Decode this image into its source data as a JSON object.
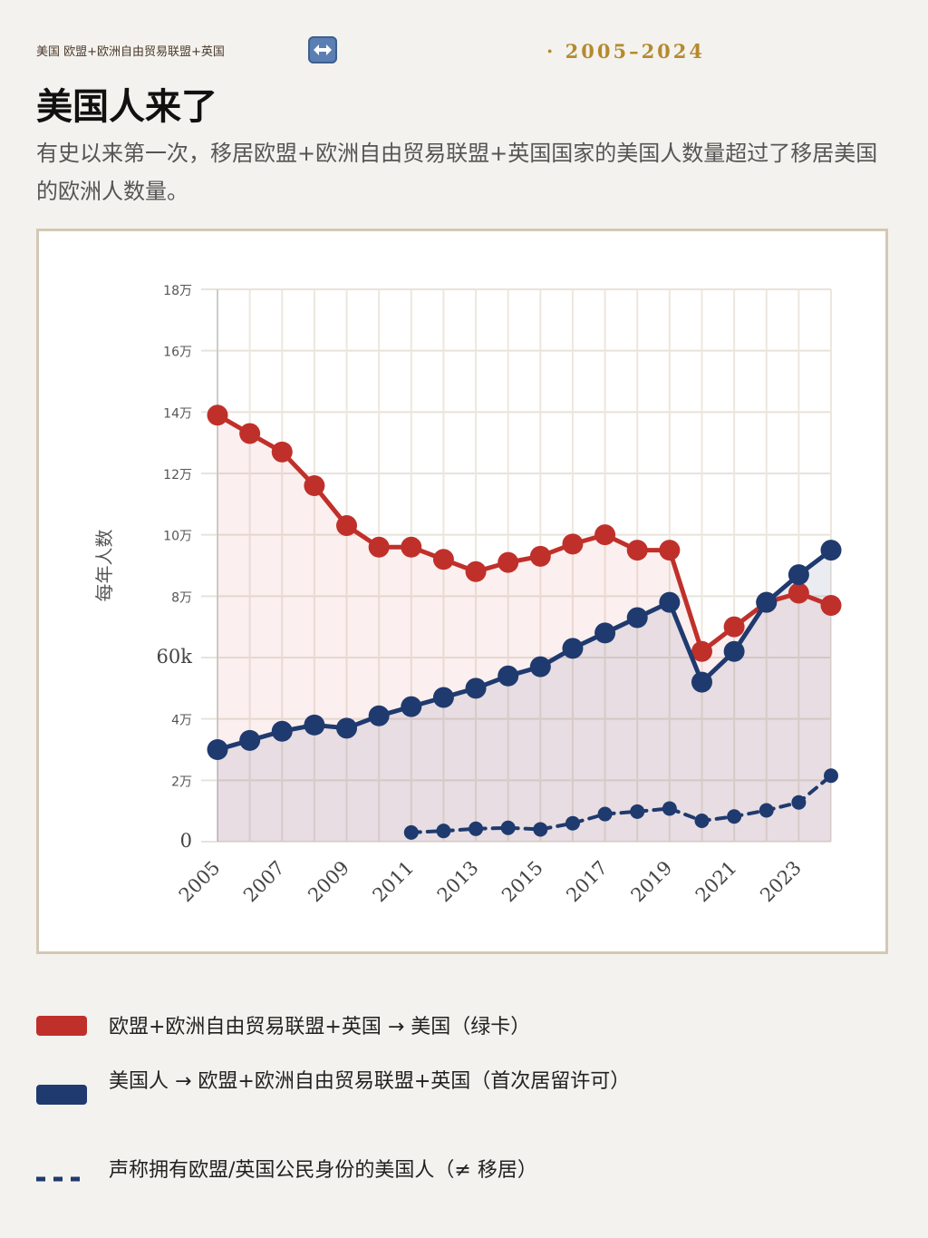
{
  "header": {
    "top_label": "美国 欧盟+欧洲自由贸易联盟+英国",
    "years": "· 2005–2024",
    "title": "美国人来了",
    "subtitle": "有史以来第一次，移居欧盟+欧洲自由贸易联盟+英国国家的美国人数量超过了移居美国的欧洲人数量。",
    "swap_icon": "left-right-arrows-icon"
  },
  "chart_data": {
    "type": "line",
    "ylabel": "每年人数",
    "xlabel": "",
    "ylim": [
      0,
      180000
    ],
    "y_ticks": [
      0,
      20000,
      40000,
      60000,
      80000,
      100000,
      120000,
      140000,
      160000,
      180000
    ],
    "y_tick_labels": [
      "0",
      "2万",
      "4万",
      "60k",
      "8万",
      "10万",
      "12万",
      "14万",
      "16万",
      "18万"
    ],
    "x": [
      2005,
      2006,
      2007,
      2008,
      2009,
      2010,
      2011,
      2012,
      2013,
      2014,
      2015,
      2016,
      2017,
      2018,
      2019,
      2020,
      2021,
      2022,
      2023,
      2024
    ],
    "x_tick_labels": [
      "2005",
      "2007",
      "2009",
      "2011",
      "2013",
      "2015",
      "2017",
      "2019",
      "2021",
      "2023"
    ],
    "grid": true,
    "legend_position": "bottom",
    "series": [
      {
        "name": "欧盟+欧洲自由贸易联盟+英国 → 美国（绿卡）",
        "color": "#c0302a",
        "style": "solid",
        "values": [
          139000,
          133000,
          127000,
          116000,
          103000,
          96000,
          96000,
          92000,
          88000,
          91000,
          93000,
          97000,
          100000,
          95000,
          95000,
          62000,
          70000,
          78000,
          81000,
          77000
        ]
      },
      {
        "name": "美国人 → 欧盟+欧洲自由贸易联盟+英国（首次居留许可）",
        "color": "#1f3a6e",
        "style": "solid",
        "values": [
          30000,
          33000,
          36000,
          38000,
          37000,
          41000,
          44000,
          47000,
          50000,
          54000,
          57000,
          63000,
          68000,
          73000,
          78000,
          52000,
          62000,
          78000,
          87000,
          95000
        ]
      },
      {
        "name": "声称拥有欧盟/英国公民身份的美国人（≠ 移居）",
        "color": "#1f3a6e",
        "style": "dashed",
        "values": [
          null,
          null,
          null,
          null,
          null,
          null,
          3000,
          3500,
          4200,
          4500,
          4000,
          6000,
          9000,
          9800,
          10800,
          6800,
          8200,
          10200,
          12800,
          21500
        ]
      }
    ]
  }
}
